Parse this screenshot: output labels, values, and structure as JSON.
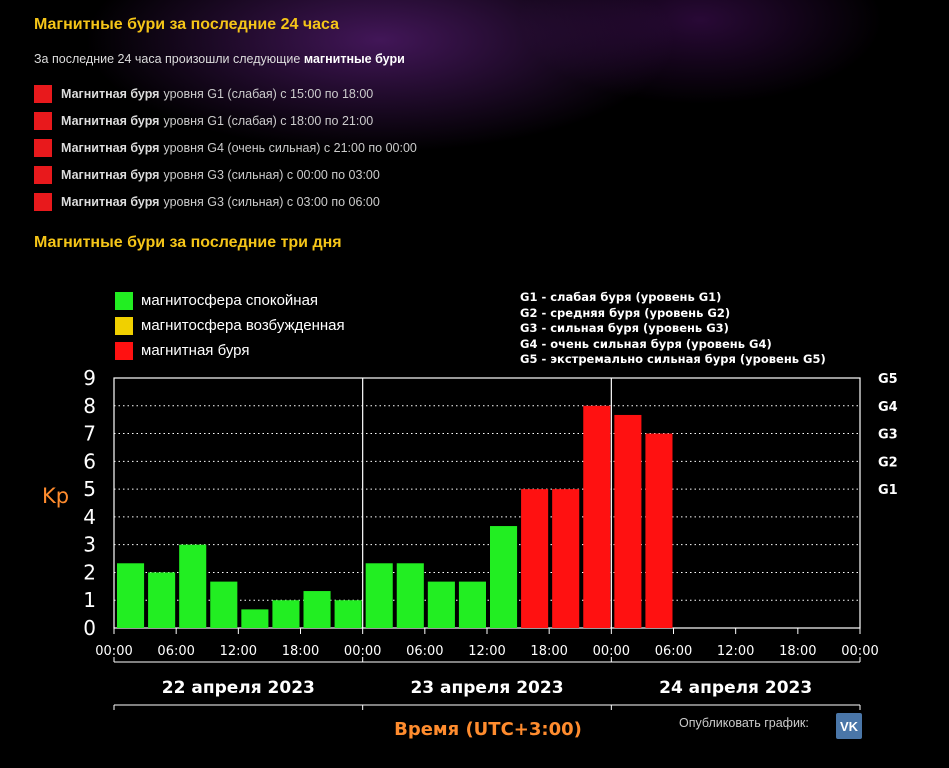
{
  "section24": {
    "title": "Магнитные бури за последние 24 часа",
    "intro_text": "За последние 24 часа произошли следующие",
    "intro_bold": "магнитные бури",
    "storms": [
      {
        "name": "Магнитная буря",
        "desc": "уровня G1 (слабая) с 15:00 по 18:00"
      },
      {
        "name": "Магнитная буря",
        "desc": "уровня G1 (слабая) с 18:00 по 21:00"
      },
      {
        "name": "Магнитная буря",
        "desc": "уровня G4 (очень сильная) с 21:00 по 00:00"
      },
      {
        "name": "Магнитная буря",
        "desc": "уровня G3 (сильная) с 00:00 по 03:00"
      },
      {
        "name": "Магнитная буря",
        "desc": "уровня G3 (сильная) с 03:00 по 06:00"
      }
    ]
  },
  "section3d": {
    "title": "Магнитные бури за последние три дня"
  },
  "legend": [
    {
      "label": "магнитосфера спокойная",
      "color": "#22ee22"
    },
    {
      "label": "магнитосфера возбужденная",
      "color": "#f0d000"
    },
    {
      "label": "магнитная буря",
      "color": "#ff1111"
    }
  ],
  "g_levels": [
    "G1 - слабая буря (уровень G1)",
    "G2 - средняя буря (уровень G2)",
    "G3 - сильная буря (уровень G3)",
    "G4 - очень сильная буря (уровень G4)",
    "G5 - экстремально сильная буря (уровень G5)"
  ],
  "publish": {
    "label": "Опубликовать график:",
    "vk": "VK"
  },
  "chart_data": {
    "type": "bar",
    "ylabel": "Kp",
    "xlabel": "Время (UTC+3:00)",
    "ylim": [
      0,
      9
    ],
    "yticks": [
      0,
      1,
      2,
      3,
      4,
      5,
      6,
      7,
      8,
      9
    ],
    "right_ticks": [
      {
        "label": "G1",
        "value": 5
      },
      {
        "label": "G2",
        "value": 6
      },
      {
        "label": "G3",
        "value": 7
      },
      {
        "label": "G4",
        "value": 8
      },
      {
        "label": "G5",
        "value": 9
      }
    ],
    "time_ticks": [
      "00:00",
      "06:00",
      "12:00",
      "18:00",
      "00:00",
      "06:00",
      "12:00",
      "18:00",
      "00:00",
      "06:00",
      "12:00",
      "18:00",
      "00:00"
    ],
    "days": [
      "22 апреля 2023",
      "23 апреля 2023",
      "24 апреля 2023"
    ],
    "bar_step_hours": 3,
    "values": [
      2.33,
      2,
      3,
      1.67,
      0.67,
      1,
      1.33,
      1,
      2.33,
      2.33,
      1.67,
      1.67,
      3.67,
      5,
      5,
      8,
      7.67,
      7
    ],
    "bar_colors": [
      "#22ee22",
      "#22ee22",
      "#22ee22",
      "#22ee22",
      "#22ee22",
      "#22ee22",
      "#22ee22",
      "#22ee22",
      "#22ee22",
      "#22ee22",
      "#22ee22",
      "#22ee22",
      "#22ee22",
      "#ff1111",
      "#ff1111",
      "#ff1111",
      "#ff1111",
      "#ff1111"
    ],
    "grid": true
  }
}
